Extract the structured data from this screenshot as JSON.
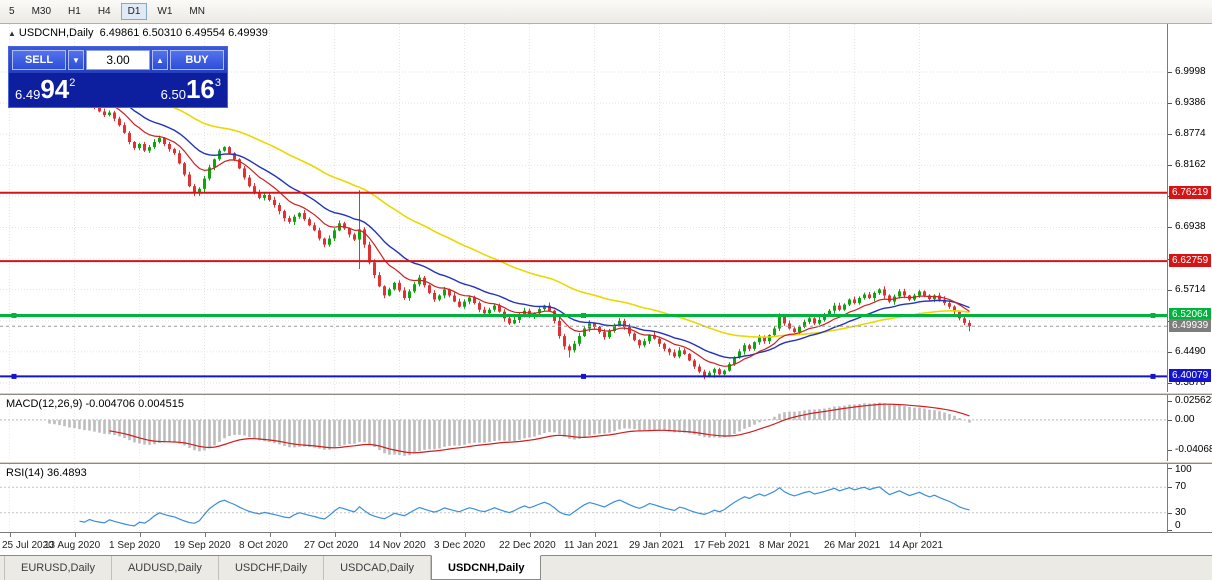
{
  "toolbar": {
    "timeframes": [
      {
        "label": "5",
        "active": false
      },
      {
        "label": "M30",
        "active": false
      },
      {
        "label": "H1",
        "active": false
      },
      {
        "label": "H4",
        "active": false
      },
      {
        "label": "D1",
        "active": true
      },
      {
        "label": "W1",
        "active": false
      },
      {
        "label": "MN",
        "active": false
      }
    ]
  },
  "header": {
    "collapse_icon": "▲",
    "symbol": "USDCNH,Daily",
    "ohlc": "6.49861 6.50310 6.49554 6.49939"
  },
  "trade_panel": {
    "sell_label": "SELL",
    "buy_label": "BUY",
    "volume": "3.00",
    "sell_price": {
      "small": "6.49",
      "big": "94",
      "sup": "2"
    },
    "buy_price": {
      "small": "6.50",
      "big": "16",
      "sup": "3"
    }
  },
  "price_axis": {
    "labels": [
      "6.9998",
      "6.9386",
      "6.8774",
      "6.8162",
      "6.7550",
      "6.6938",
      "6.6326",
      "6.5714",
      "6.5102",
      "6.4490",
      "6.3878"
    ]
  },
  "price_lines": [
    {
      "label": "6.76219",
      "value": 6.76219,
      "color": "#d51515",
      "width": 2,
      "selected": false
    },
    {
      "label": "6.62759",
      "value": 6.62759,
      "color": "#d51515",
      "width": 2,
      "selected": false
    },
    {
      "label": "6.52064",
      "value": 6.52064,
      "color": "#00b33c",
      "width": 3,
      "selected": true
    },
    {
      "label": "6.40079",
      "value": 6.40079,
      "color": "#1414cc",
      "width": 2,
      "selected": true
    }
  ],
  "bid_line": {
    "label": "6.49939",
    "value": 6.49939,
    "color": "#7d7d7d"
  },
  "date_axis": [
    {
      "label": "25 Jul 2020",
      "index": 0
    },
    {
      "label": "13 Aug 2020",
      "index": 13
    },
    {
      "label": "1 Sep 2020",
      "index": 26
    },
    {
      "label": "19 Sep 2020",
      "index": 39
    },
    {
      "label": "8 Oct 2020",
      "index": 52
    },
    {
      "label": "27 Oct 2020",
      "index": 65
    },
    {
      "label": "14 Nov 2020",
      "index": 78
    },
    {
      "label": "3 Dec 2020",
      "index": 91
    },
    {
      "label": "22 Dec 2020",
      "index": 104
    },
    {
      "label": "11 Jan 2021",
      "index": 117
    },
    {
      "label": "29 Jan 2021",
      "index": 130
    },
    {
      "label": "17 Feb 2021",
      "index": 143
    },
    {
      "label": "8 Mar 2021",
      "index": 156
    },
    {
      "label": "26 Mar 2021",
      "index": 169
    },
    {
      "label": "14 Apr 2021",
      "index": 182
    }
  ],
  "macd_panel": {
    "title": "MACD(12,26,9)",
    "values": "-0.004706 0.004515",
    "axis_labels": [
      "0.025623",
      "0.00",
      "-0.040687"
    ],
    "scale_max": 0.034,
    "scale_min": -0.056,
    "histogram_color": "#bdbdbd",
    "signal_color": "#cf1f1f"
  },
  "rsi_panel": {
    "title": "RSI(14)",
    "value": "36.4893",
    "axis_labels": [
      "100",
      "70",
      "30",
      "0"
    ],
    "levels": [
      70,
      30
    ],
    "line_color": "#3b8ede"
  },
  "tabs": [
    {
      "label": "EURUSD,Daily",
      "active": false
    },
    {
      "label": "AUDUSD,Daily",
      "active": false
    },
    {
      "label": "USDCHF,Daily",
      "active": false
    },
    {
      "label": "USDCAD,Daily",
      "active": false
    },
    {
      "label": "USDCNH,Daily",
      "active": true
    }
  ],
  "chart_data": {
    "type": "candlestick",
    "symbol": "USDCNH",
    "timeframe": "Daily",
    "up_color": "#0fa50f",
    "down_color": "#e03232",
    "closes": [
      7.0,
      6.997,
      7.001,
      6.995,
      6.99,
      6.992,
      6.985,
      6.978,
      6.971,
      6.974,
      6.966,
      6.958,
      6.95,
      6.955,
      6.945,
      6.938,
      6.942,
      6.93,
      6.922,
      6.915,
      6.92,
      6.908,
      6.895,
      6.88,
      6.862,
      6.85,
      6.858,
      6.845,
      6.852,
      6.862,
      6.87,
      6.858,
      6.848,
      6.84,
      6.82,
      6.798,
      6.775,
      6.762,
      6.77,
      6.79,
      6.812,
      6.828,
      6.845,
      6.852,
      6.84,
      6.828,
      6.81,
      6.792,
      6.775,
      6.762,
      6.752,
      6.758,
      6.748,
      6.738,
      6.726,
      6.712,
      6.705,
      6.715,
      6.722,
      6.71,
      6.698,
      6.688,
      6.672,
      6.66,
      6.672,
      6.688,
      6.702,
      6.692,
      6.68,
      6.67,
      6.69,
      6.66,
      6.625,
      6.6,
      6.578,
      6.56,
      6.572,
      6.585,
      6.57,
      6.555,
      6.568,
      6.582,
      6.595,
      6.58,
      6.565,
      6.552,
      6.56,
      6.572,
      6.56,
      6.548,
      6.538,
      6.548,
      6.556,
      6.545,
      6.532,
      6.525,
      6.532,
      6.54,
      6.528,
      6.515,
      6.505,
      6.512,
      6.522,
      6.53,
      6.518,
      6.525,
      6.533,
      6.54,
      6.53,
      6.51,
      6.48,
      6.46,
      6.452,
      6.465,
      6.48,
      6.495,
      6.505,
      6.498,
      6.488,
      6.478,
      6.49,
      6.502,
      6.51,
      6.498,
      6.485,
      6.472,
      6.462,
      6.47,
      6.482,
      6.475,
      6.465,
      6.455,
      6.448,
      6.44,
      6.452,
      6.445,
      6.432,
      6.42,
      6.41,
      6.402,
      6.408,
      6.415,
      6.405,
      6.412,
      6.425,
      6.438,
      6.45,
      6.462,
      6.455,
      6.468,
      6.478,
      6.47,
      6.482,
      6.495,
      6.52,
      6.505,
      6.495,
      6.488,
      6.498,
      6.508,
      6.515,
      6.505,
      6.512,
      6.52,
      6.53,
      6.54,
      6.532,
      6.542,
      6.552,
      6.545,
      6.555,
      6.562,
      6.555,
      6.565,
      6.572,
      6.56,
      6.548,
      6.558,
      6.568,
      6.56,
      6.552,
      6.56,
      6.568,
      6.56,
      6.553,
      6.56,
      6.552,
      6.545,
      6.538,
      6.528,
      6.515,
      6.506,
      6.49939
    ],
    "wick_overrides": [
      {
        "i": 70,
        "high": 6.767,
        "low": 6.612
      },
      {
        "i": 112,
        "low": 6.438
      },
      {
        "i": 139,
        "low": 6.3955
      },
      {
        "i": 141,
        "low": 6.398
      },
      {
        "i": 192,
        "low": 6.4895
      }
    ],
    "moving_averages": [
      {
        "type": "ema",
        "period": 50,
        "color": "#ead800",
        "width": 1.6
      },
      {
        "type": "ema",
        "period": 20,
        "color": "#2233bb",
        "width": 1.4
      },
      {
        "type": "ema",
        "period": 10,
        "color": "#cc2222",
        "width": 1.2
      }
    ]
  }
}
